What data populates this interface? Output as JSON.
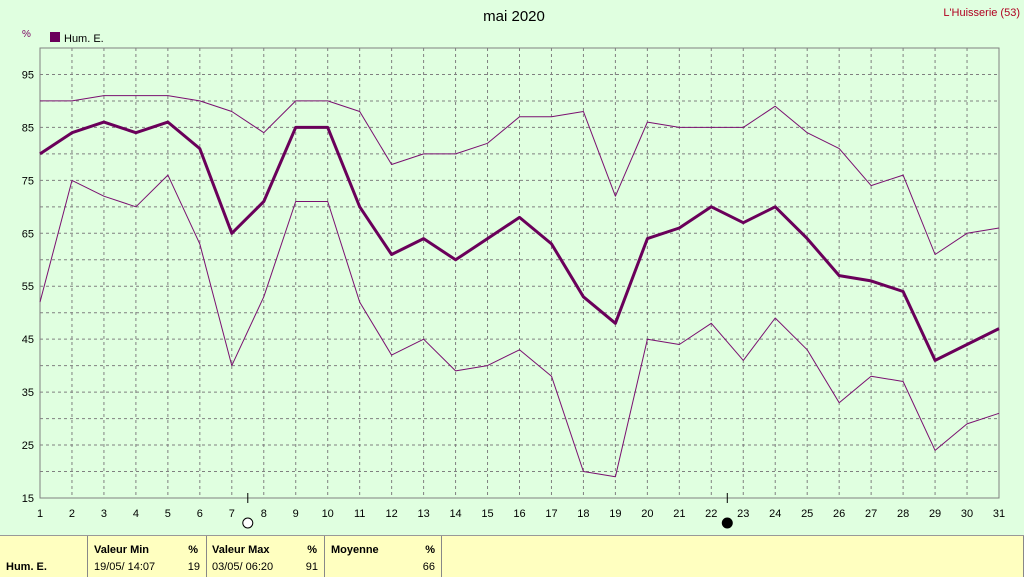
{
  "header": {
    "title": "mai 2020",
    "station": "L'Huisserie (53)",
    "unit": "%"
  },
  "legend": {
    "label": "Hum. E.",
    "color": "#6a005a"
  },
  "chart_data": {
    "type": "line",
    "title": "mai 2020",
    "ylabel": "%",
    "ylim": [
      15,
      100
    ],
    "yticks": [
      15,
      25,
      35,
      45,
      55,
      65,
      75,
      85,
      95
    ],
    "x": [
      1,
      2,
      3,
      4,
      5,
      6,
      7,
      8,
      9,
      10,
      11,
      12,
      13,
      14,
      15,
      16,
      17,
      18,
      19,
      20,
      21,
      22,
      23,
      24,
      25,
      26,
      27,
      28,
      29,
      30,
      31
    ],
    "grid": true,
    "legend_position": "top-left",
    "series": [
      {
        "name": "Hum. E.",
        "role": "mean",
        "color": "#6a005a",
        "values": [
          80,
          84,
          86,
          84,
          86,
          81,
          65,
          71,
          85,
          85,
          70,
          61,
          64,
          60,
          64,
          68,
          63,
          53,
          48,
          64,
          66,
          70,
          67,
          70,
          64,
          57,
          56,
          54,
          41,
          44,
          47
        ]
      },
      {
        "role": "max",
        "color": "#7a1070",
        "values": [
          90,
          90,
          91,
          91,
          91,
          90,
          88,
          84,
          90,
          90,
          88,
          78,
          80,
          80,
          82,
          87,
          87,
          88,
          72,
          86,
          85,
          85,
          85,
          89,
          84,
          81,
          74,
          76,
          61,
          65,
          66
        ]
      },
      {
        "role": "min",
        "color": "#7a1070",
        "values": [
          52,
          75,
          72,
          70,
          76,
          63,
          40,
          53,
          71,
          71,
          52,
          42,
          45,
          39,
          40,
          43,
          38,
          20,
          19,
          45,
          44,
          48,
          41,
          49,
          43,
          33,
          38,
          37,
          24,
          29,
          31
        ]
      }
    ],
    "markers": [
      {
        "day": 7.5,
        "symbol": "full-moon",
        "label": ""
      },
      {
        "day": 22.5,
        "symbol": "new-moon",
        "label": ""
      }
    ]
  },
  "stats": {
    "series_name": "Hum. E.",
    "min": {
      "label": "Valeur Min",
      "unit": "%",
      "date": "19/05/  14:07",
      "value": "19"
    },
    "max": {
      "label": "Valeur Max",
      "unit": "%",
      "date": "03/05/  06:20",
      "value": "91"
    },
    "mean": {
      "label": "Moyenne",
      "unit": "%",
      "value": "66"
    }
  }
}
